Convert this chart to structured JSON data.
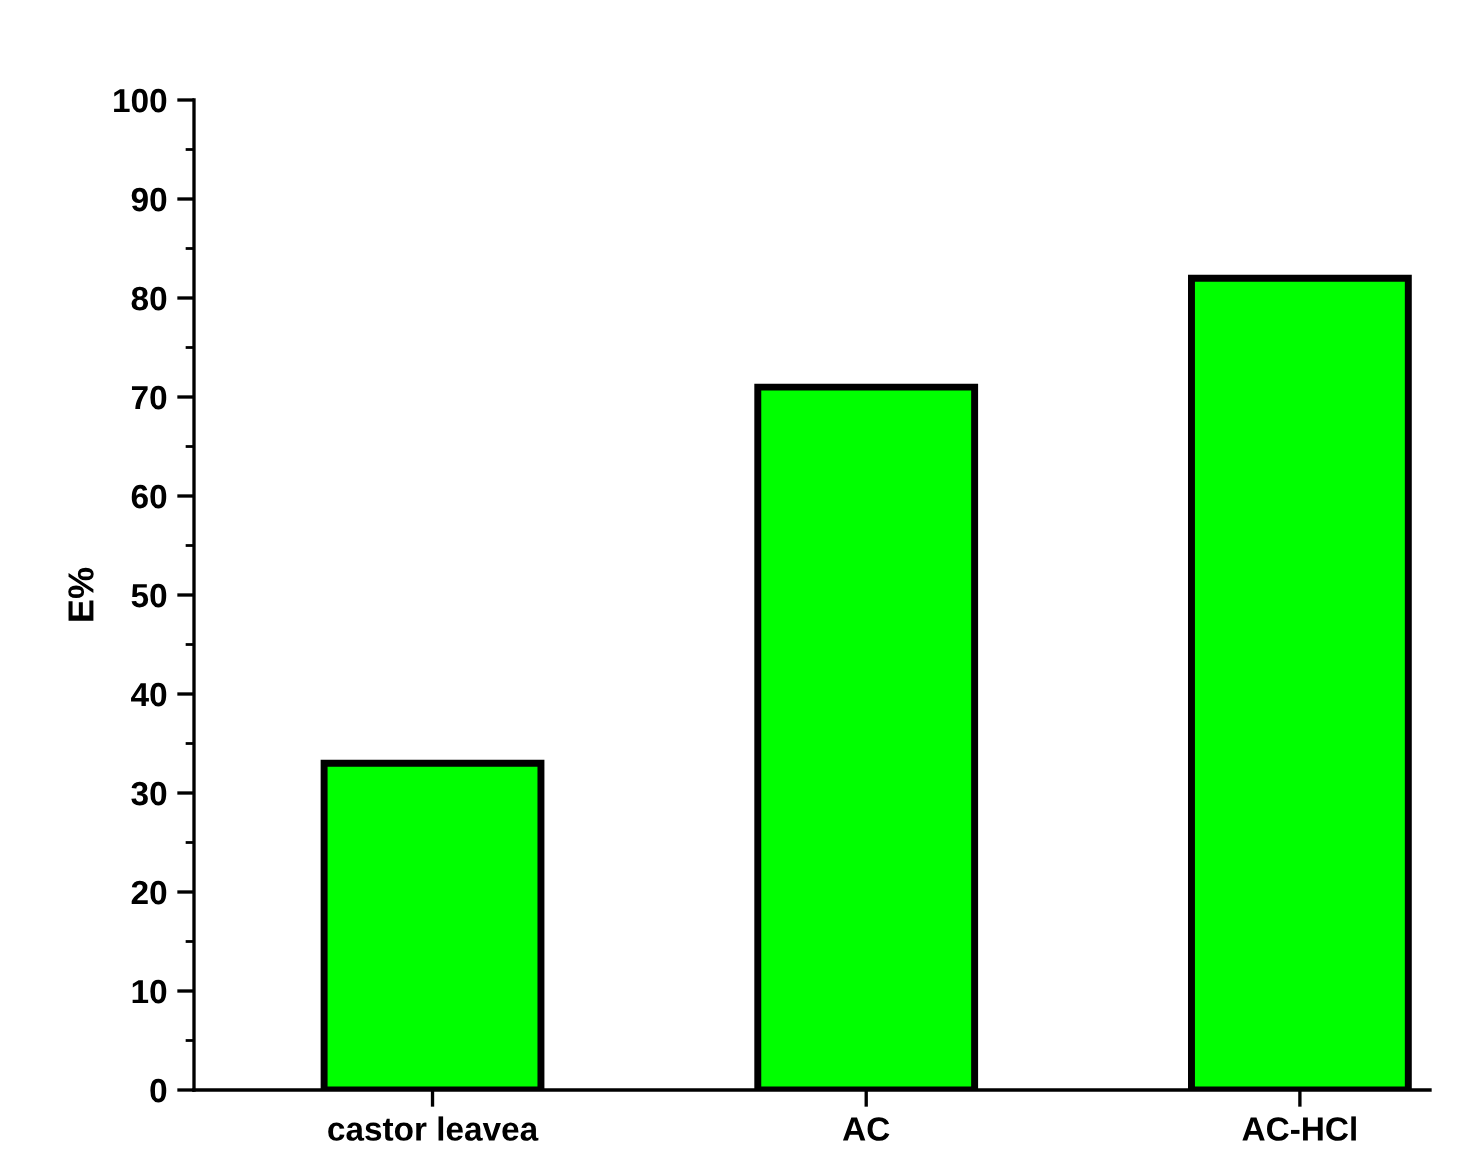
{
  "chart_data": {
    "type": "bar",
    "categories": [
      "castor leavea",
      "AC",
      "AC-HCl"
    ],
    "values": [
      33,
      71,
      82
    ],
    "color": "#00ff00",
    "ylabel": "E%",
    "ylim": [
      0,
      100
    ],
    "yticks": [
      0,
      10,
      20,
      30,
      40,
      50,
      60,
      70,
      80,
      90,
      100
    ],
    "grid": false,
    "legend": false
  }
}
